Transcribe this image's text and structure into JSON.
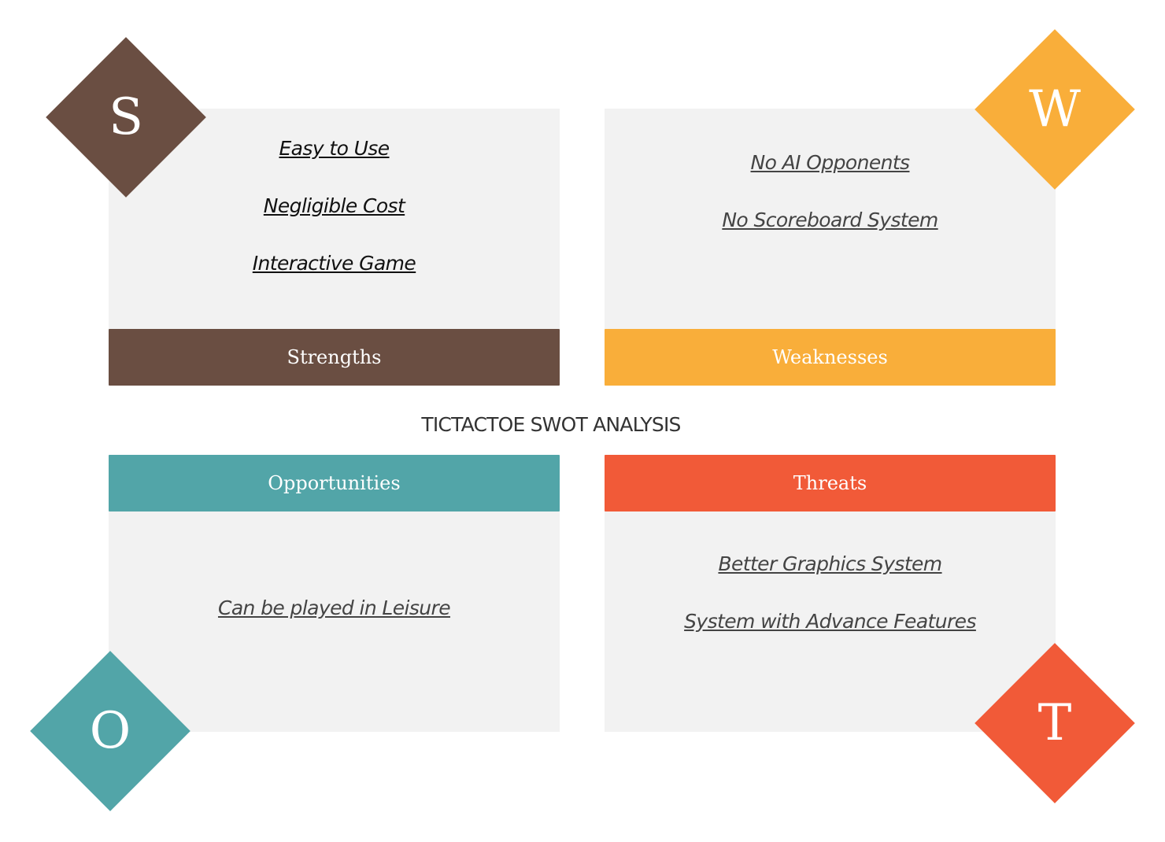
{
  "title": "TICTACTOE SWOT ANALYSIS",
  "colors": {
    "strengths": "#6a4e42",
    "weaknesses": "#f9ae3a",
    "opportunities": "#52a5a8",
    "threats": "#f15a38",
    "card_background": "#f2f2f2"
  },
  "strengths": {
    "letter": "S",
    "label": "Strengths",
    "items": [
      "Easy to Use",
      "Negligible Cost",
      "Interactive Game"
    ]
  },
  "weaknesses": {
    "letter": "W",
    "label": "Weaknesses",
    "items": [
      "No AI Opponents",
      "No Scoreboard System"
    ]
  },
  "opportunities": {
    "letter": "O",
    "label": "Opportunities",
    "items": [
      "Can be played in Leisure"
    ]
  },
  "threats": {
    "letter": "T",
    "label": "Threats",
    "items": [
      "Better Graphics System",
      "System with Advance Features"
    ]
  }
}
